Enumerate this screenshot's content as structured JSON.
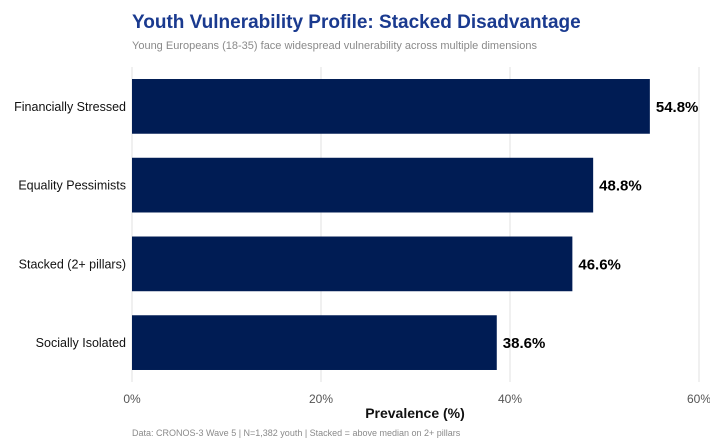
{
  "title": "Youth Vulnerability Profile: Stacked Disadvantage",
  "subtitle": "Young Europeans (18-35) face widespread vulnerability across multiple dimensions",
  "caption": "Data: CRONOS-3 Wave 5 | N=1,382 youth | Stacked = above median on 2+ pillars",
  "chart_data": {
    "type": "bar",
    "orientation": "horizontal",
    "categories": [
      "Financially Stressed",
      "Equality Pessimists",
      "Stacked (2+ pillars)",
      "Socially Isolated"
    ],
    "values": [
      54.8,
      48.8,
      46.6,
      38.6
    ],
    "value_labels": [
      "54.8%",
      "48.8%",
      "46.6%",
      "38.6%"
    ],
    "xlabel": "Prevalence (%)",
    "ylabel": "",
    "xlim": [
      0,
      60
    ],
    "xticks": [
      0,
      20,
      40,
      60
    ],
    "xtick_labels": [
      "0%",
      "20%",
      "40%",
      "60%"
    ],
    "grid": true,
    "bar_color": "#001c54"
  }
}
